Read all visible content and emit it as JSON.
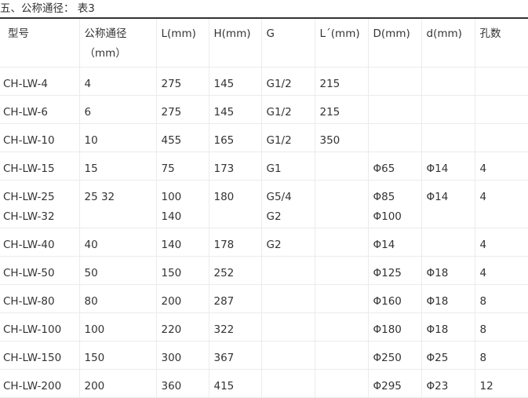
{
  "title": "五、公称通径： 表3",
  "table": {
    "headers": [
      "型号",
      "公称通径",
      "L(mm)",
      "H(mm)",
      "G",
      "L´(mm)",
      "D(mm)",
      "d(mm)",
      "孔数"
    ],
    "header_sub": "（mm）",
    "rows": [
      [
        [
          "CH-LW-4"
        ],
        [
          "4"
        ],
        [
          "275"
        ],
        [
          "145"
        ],
        [
          "G1/2"
        ],
        [
          "215"
        ],
        [
          ""
        ],
        [
          ""
        ],
        [
          ""
        ]
      ],
      [
        [
          "CH-LW-6"
        ],
        [
          "6"
        ],
        [
          "275"
        ],
        [
          "145"
        ],
        [
          "G1/2"
        ],
        [
          "215"
        ],
        [
          ""
        ],
        [
          ""
        ],
        [
          ""
        ]
      ],
      [
        [
          "CH-LW-10"
        ],
        [
          "10"
        ],
        [
          "455"
        ],
        [
          "165"
        ],
        [
          "G1/2"
        ],
        [
          "350"
        ],
        [
          ""
        ],
        [
          ""
        ],
        [
          ""
        ]
      ],
      [
        [
          "CH-LW-15"
        ],
        [
          "15"
        ],
        [
          "75"
        ],
        [
          "173"
        ],
        [
          "G1"
        ],
        [
          ""
        ],
        [
          "Φ65"
        ],
        [
          "Φ14"
        ],
        [
          "4"
        ]
      ],
      [
        [
          "CH-LW-25",
          "CH-LW-32"
        ],
        [
          "25 32"
        ],
        [
          "100",
          "140"
        ],
        [
          "180"
        ],
        [
          "G5/4",
          "G2"
        ],
        [
          ""
        ],
        [
          "Φ85",
          "Φ100"
        ],
        [
          "Φ14"
        ],
        [
          "4"
        ]
      ],
      [
        [
          "CH-LW-40"
        ],
        [
          "40"
        ],
        [
          "140"
        ],
        [
          "178"
        ],
        [
          "G2"
        ],
        [
          ""
        ],
        [
          "Φ14"
        ],
        [
          ""
        ],
        [
          "4"
        ]
      ],
      [
        [
          "CH-LW-50"
        ],
        [
          "50"
        ],
        [
          "150"
        ],
        [
          "252"
        ],
        [
          ""
        ],
        [
          ""
        ],
        [
          "Φ125"
        ],
        [
          "Φ18"
        ],
        [
          "4"
        ]
      ],
      [
        [
          "CH-LW-80"
        ],
        [
          "80"
        ],
        [
          "200"
        ],
        [
          "287"
        ],
        [
          ""
        ],
        [
          ""
        ],
        [
          "Φ160"
        ],
        [
          "Φ18"
        ],
        [
          "8"
        ]
      ],
      [
        [
          "CH-LW-100"
        ],
        [
          "100"
        ],
        [
          "220"
        ],
        [
          "322"
        ],
        [
          ""
        ],
        [
          ""
        ],
        [
          "Φ180"
        ],
        [
          "Φ18"
        ],
        [
          "8"
        ]
      ],
      [
        [
          "CH-LW-150"
        ],
        [
          "150"
        ],
        [
          "300"
        ],
        [
          "367"
        ],
        [
          ""
        ],
        [
          ""
        ],
        [
          "Φ250"
        ],
        [
          "Φ25"
        ],
        [
          "8"
        ]
      ],
      [
        [
          "CH-LW-200"
        ],
        [
          "200"
        ],
        [
          "360"
        ],
        [
          "415"
        ],
        [
          ""
        ],
        [
          ""
        ],
        [
          "Φ295"
        ],
        [
          "Φ23"
        ],
        [
          "12"
        ]
      ]
    ]
  }
}
